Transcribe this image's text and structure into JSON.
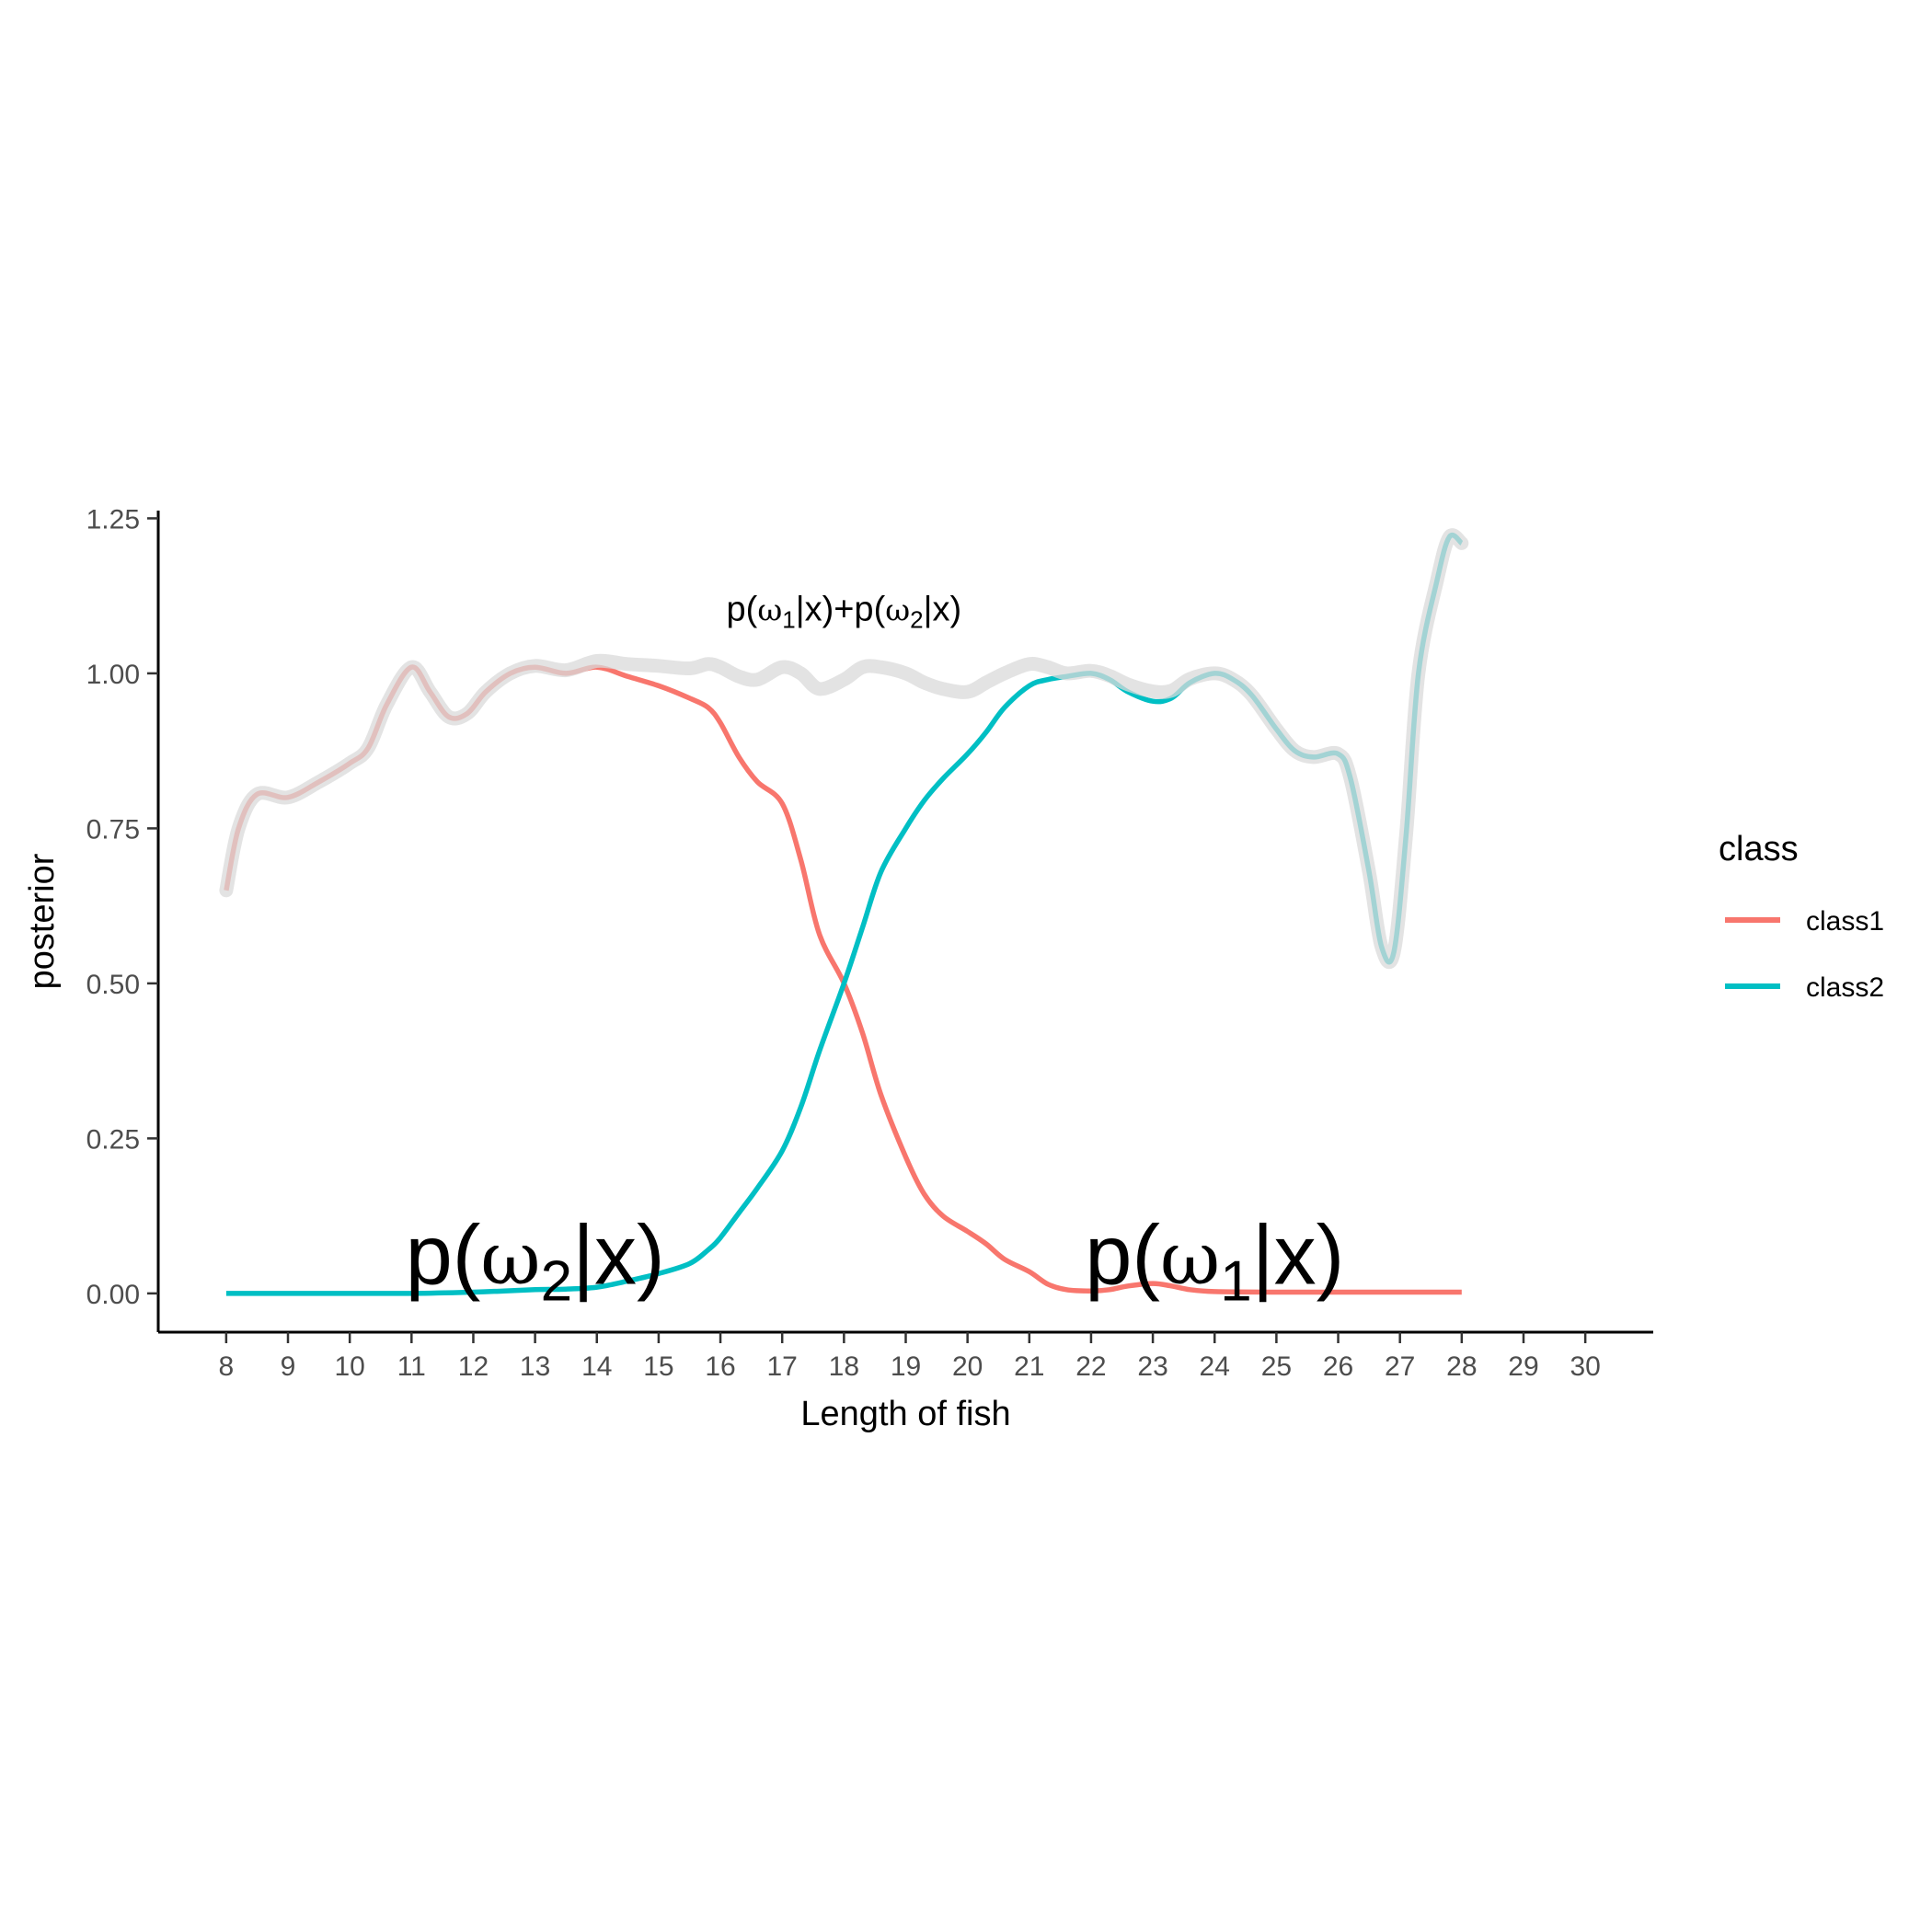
{
  "chart_data": {
    "type": "line",
    "title": "",
    "xlabel": "Length of fish",
    "ylabel": "posterior",
    "xlim": [
      6.9,
      31.1
    ],
    "ylim": [
      -0.0625,
      1.2625
    ],
    "x_ticks": [
      8,
      9,
      10,
      11,
      12,
      13,
      14,
      15,
      16,
      17,
      18,
      19,
      20,
      21,
      22,
      23,
      24,
      25,
      26,
      27,
      28,
      29,
      30
    ],
    "y_ticks": [
      0,
      0.25,
      0.5,
      0.75,
      1.0,
      1.25
    ],
    "y_tick_labels": [
      "0.00",
      "0.25",
      "0.50",
      "0.75",
      "1.00",
      "1.25"
    ],
    "grid": false,
    "legend": {
      "title": "class",
      "position": "right",
      "entries": [
        "class1",
        "class2"
      ]
    },
    "colors": {
      "class1": "#F8766D",
      "class2": "#00BFC4",
      "sum": "#d9d9d9"
    },
    "annotations": {
      "sum_label": {
        "prefix": "p(",
        "omega": "ω",
        "sub1": "1",
        "mid": "|x)+p(",
        "sub2": "2",
        "suffix": "|x)",
        "x": 18,
        "y": 1.1
      },
      "class2_label": {
        "prefix": "p(",
        "omega": "ω",
        "sub": "2",
        "suffix": "|x)",
        "x": 13,
        "y": 0.06
      },
      "class1_label": {
        "prefix": "p(",
        "omega": "ω",
        "sub": "1",
        "suffix": "|x)",
        "x": 24,
        "y": 0.06
      }
    },
    "series": [
      {
        "name": "class1",
        "x": [
          8,
          8.2,
          8.5,
          9,
          9.5,
          10,
          10.3,
          10.6,
          11,
          11.3,
          11.6,
          11.9,
          12.2,
          12.6,
          13,
          13.5,
          14,
          14.5,
          15,
          15.5,
          15.8,
          16,
          16.3,
          16.6,
          17,
          17.3,
          17.6,
          18,
          18.3,
          18.6,
          19,
          19.3,
          19.6,
          20,
          20.3,
          20.6,
          21,
          21.3,
          21.6,
          22,
          22.3,
          22.6,
          23,
          23.3,
          23.6,
          24,
          25,
          26,
          27,
          28
        ],
        "values": [
          0.65,
          0.75,
          0.805,
          0.8,
          0.825,
          0.855,
          0.88,
          0.95,
          1.01,
          0.97,
          0.93,
          0.935,
          0.97,
          1.0,
          1.01,
          1.0,
          1.01,
          0.995,
          0.98,
          0.96,
          0.945,
          0.92,
          0.865,
          0.825,
          0.79,
          0.7,
          0.58,
          0.5,
          0.42,
          0.32,
          0.22,
          0.16,
          0.125,
          0.1,
          0.08,
          0.055,
          0.035,
          0.015,
          0.006,
          0.004,
          0.006,
          0.012,
          0.016,
          0.012,
          0.006,
          0.003,
          0.002,
          0.002,
          0.002,
          0.002
        ]
      },
      {
        "name": "class2",
        "x": [
          8,
          9,
          10,
          11,
          12,
          12.5,
          13,
          13.5,
          14,
          14.5,
          15,
          15.5,
          15.8,
          16,
          16.3,
          16.6,
          17,
          17.3,
          17.6,
          18,
          18.3,
          18.6,
          19,
          19.3,
          19.6,
          20,
          20.3,
          20.6,
          21,
          21.3,
          21.6,
          22,
          22.3,
          22.6,
          23,
          23.3,
          23.6,
          24,
          24.3,
          24.6,
          25,
          25.3,
          25.6,
          26,
          26.2,
          26.5,
          26.7,
          26.9,
          27.1,
          27.3,
          27.6,
          27.8,
          28
        ],
        "values": [
          0.0,
          0.0,
          0.0,
          0.0,
          0.002,
          0.004,
          0.006,
          0.007,
          0.01,
          0.02,
          0.032,
          0.048,
          0.07,
          0.09,
          0.13,
          0.17,
          0.23,
          0.3,
          0.39,
          0.5,
          0.59,
          0.68,
          0.75,
          0.795,
          0.83,
          0.87,
          0.905,
          0.945,
          0.98,
          0.99,
          0.995,
          1.0,
          0.99,
          0.97,
          0.955,
          0.96,
          0.985,
          1.0,
          0.99,
          0.965,
          0.91,
          0.875,
          0.865,
          0.87,
          0.83,
          0.68,
          0.56,
          0.55,
          0.74,
          1.0,
          1.15,
          1.22,
          1.21
        ]
      },
      {
        "name": "sum",
        "x": [
          8,
          8.2,
          8.5,
          9,
          9.5,
          10,
          10.3,
          10.6,
          11,
          11.3,
          11.6,
          11.9,
          12.2,
          12.6,
          13,
          13.5,
          14,
          14.5,
          15,
          15.5,
          15.8,
          16,
          16.3,
          16.6,
          17,
          17.3,
          17.6,
          18,
          18.3,
          18.6,
          19,
          19.3,
          19.6,
          20,
          20.3,
          20.6,
          21,
          21.3,
          21.6,
          22,
          22.3,
          22.6,
          23,
          23.3,
          23.6,
          24,
          24.3,
          24.6,
          25,
          25.3,
          25.6,
          26,
          26.2,
          26.5,
          26.7,
          26.9,
          27.1,
          27.3,
          27.6,
          27.8,
          28
        ],
        "values": [
          0.65,
          0.75,
          0.805,
          0.8,
          0.825,
          0.855,
          0.88,
          0.95,
          1.01,
          0.97,
          0.93,
          0.935,
          0.97,
          1.0,
          1.012,
          1.005,
          1.02,
          1.015,
          1.012,
          1.008,
          1.015,
          1.01,
          0.995,
          0.99,
          1.01,
          1.0,
          0.975,
          0.99,
          1.01,
          1.01,
          1.0,
          0.985,
          0.975,
          0.97,
          0.985,
          1.0,
          1.015,
          1.01,
          1.0,
          1.004,
          0.996,
          0.982,
          0.971,
          0.972,
          0.991,
          1.0,
          0.99,
          0.965,
          0.91,
          0.875,
          0.865,
          0.87,
          0.83,
          0.68,
          0.56,
          0.55,
          0.74,
          1.0,
          1.15,
          1.22,
          1.21
        ]
      }
    ]
  }
}
